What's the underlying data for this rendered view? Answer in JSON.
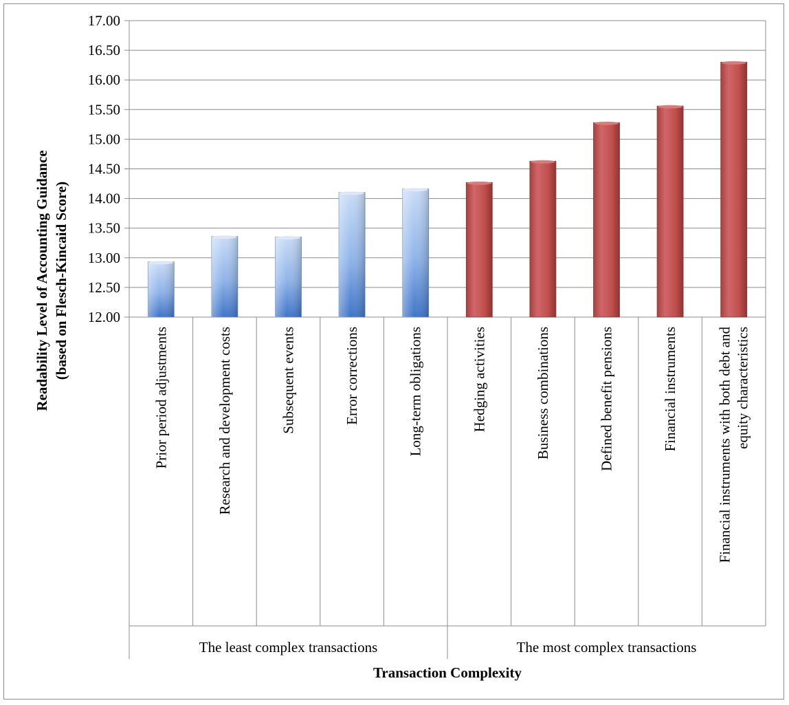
{
  "chart_data": {
    "type": "bar",
    "title": "",
    "xlabel": "Transaction Complexity",
    "ylabel_lines": [
      "Readability Level of Accounting Guidance",
      "(based on Flesch-Kincaid Score)"
    ],
    "ylim": [
      12.0,
      17.0
    ],
    "yticks": [
      "12.00",
      "12.50",
      "13.00",
      "13.50",
      "14.00",
      "14.50",
      "15.00",
      "15.50",
      "16.00",
      "16.50",
      "17.00"
    ],
    "grid": true,
    "legend": "none",
    "categories": [
      [
        "Prior period adjustments"
      ],
      [
        "Research and development costs"
      ],
      [
        "Subsequent events"
      ],
      [
        "Error corrections"
      ],
      [
        "Long-term obligations"
      ],
      [
        "Hedging activities"
      ],
      [
        "Business combinations"
      ],
      [
        "Defined benefit pensions"
      ],
      [
        "Financial instruments"
      ],
      [
        "Financial instruments with both debt and",
        "equity characteristics"
      ]
    ],
    "values": [
      12.93,
      13.36,
      13.35,
      14.1,
      14.16,
      14.27,
      14.63,
      15.28,
      15.56,
      16.3
    ],
    "groups": [
      {
        "label": "The least complex transactions",
        "count": 5,
        "color": "#5b8fd6"
      },
      {
        "label": "The most complex transactions",
        "count": 5,
        "color": "#c0504d"
      }
    ]
  }
}
